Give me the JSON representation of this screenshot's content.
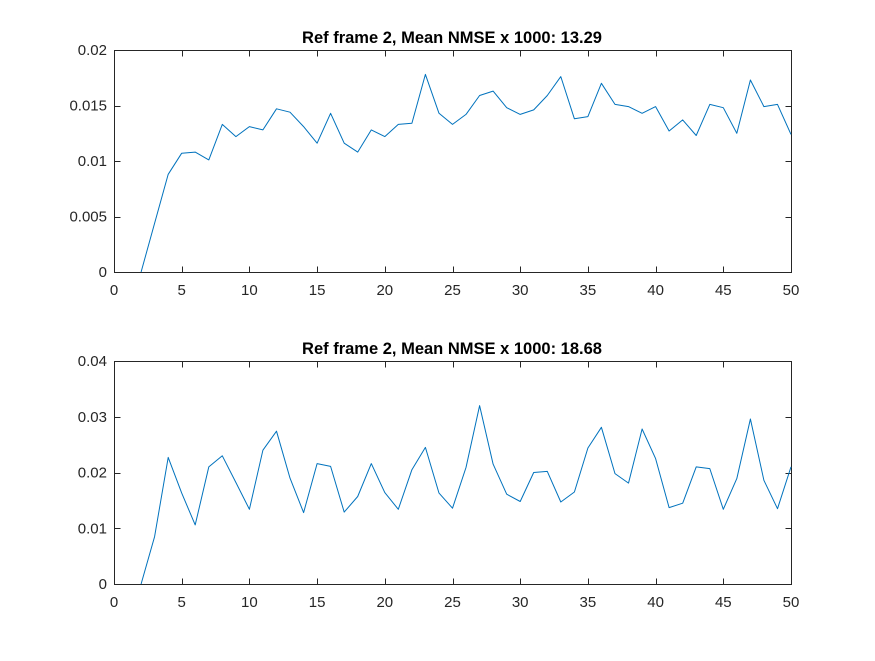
{
  "chart_data": [
    {
      "type": "line",
      "title": "Ref frame 2, Mean NMSE x 1000: 13.29",
      "xlabel": "",
      "ylabel": "",
      "xlim": [
        0,
        50
      ],
      "ylim": [
        0,
        0.02
      ],
      "xticks": [
        0,
        5,
        10,
        15,
        20,
        25,
        30,
        35,
        40,
        45,
        50
      ],
      "xtick_labels": [
        "0",
        "5",
        "10",
        "15",
        "20",
        "25",
        "30",
        "35",
        "40",
        "45",
        "50"
      ],
      "yticks": [
        0,
        0.005,
        0.01,
        0.015,
        0.02
      ],
      "ytick_labels": [
        "0",
        "0.005",
        "0.01",
        "0.015",
        "0.02"
      ],
      "grid": false,
      "line_color": "#0072BD",
      "series": [
        {
          "x": [
            2,
            3,
            4,
            5,
            6,
            7,
            8,
            9,
            10,
            11,
            12,
            13,
            14,
            15,
            16,
            17,
            18,
            19,
            20,
            21,
            22,
            23,
            24,
            25,
            26,
            27,
            28,
            29,
            30,
            31,
            32,
            33,
            34,
            35,
            36,
            37,
            38,
            39,
            40,
            41,
            42,
            43,
            44,
            45,
            46,
            47,
            48,
            49,
            50
          ],
          "values": [
            0,
            0.0044,
            0.0088,
            0.0107,
            0.0108,
            0.0101,
            0.0133,
            0.0122,
            0.0131,
            0.0128,
            0.0147,
            0.0144,
            0.0131,
            0.0116,
            0.0143,
            0.0116,
            0.0108,
            0.0128,
            0.0122,
            0.0133,
            0.0134,
            0.0178,
            0.0143,
            0.0133,
            0.0142,
            0.0159,
            0.0163,
            0.0148,
            0.0142,
            0.0146,
            0.0159,
            0.0176,
            0.0138,
            0.014,
            0.017,
            0.0151,
            0.0149,
            0.0143,
            0.0149,
            0.0127,
            0.0137,
            0.0123,
            0.0151,
            0.0148,
            0.0125,
            0.0173,
            0.0149,
            0.0151,
            0.0124
          ]
        }
      ]
    },
    {
      "type": "line",
      "title": "Ref frame 2, Mean NMSE x 1000: 18.68",
      "xlabel": "",
      "ylabel": "",
      "xlim": [
        0,
        50
      ],
      "ylim": [
        0,
        0.04
      ],
      "xticks": [
        0,
        5,
        10,
        15,
        20,
        25,
        30,
        35,
        40,
        45,
        50
      ],
      "xtick_labels": [
        "0",
        "5",
        "10",
        "15",
        "20",
        "25",
        "30",
        "35",
        "40",
        "45",
        "50"
      ],
      "yticks": [
        0,
        0.01,
        0.02,
        0.03,
        0.04
      ],
      "ytick_labels": [
        "0",
        "0.01",
        "0.02",
        "0.03",
        "0.04"
      ],
      "grid": false,
      "line_color": "#0072BD",
      "series": [
        {
          "x": [
            2,
            3,
            4,
            5,
            6,
            7,
            8,
            9,
            10,
            11,
            12,
            13,
            14,
            15,
            16,
            17,
            18,
            19,
            20,
            21,
            22,
            23,
            24,
            25,
            26,
            27,
            28,
            29,
            30,
            31,
            32,
            33,
            34,
            35,
            36,
            37,
            38,
            39,
            40,
            41,
            42,
            43,
            44,
            45,
            46,
            47,
            48,
            49,
            50
          ],
          "values": [
            0,
            0.0085,
            0.0227,
            0.0163,
            0.0106,
            0.021,
            0.023,
            0.0182,
            0.0134,
            0.024,
            0.0274,
            0.019,
            0.0128,
            0.0216,
            0.0211,
            0.0129,
            0.0157,
            0.0216,
            0.0164,
            0.0134,
            0.0205,
            0.0245,
            0.0163,
            0.0136,
            0.0209,
            0.032,
            0.0215,
            0.0161,
            0.0148,
            0.02,
            0.0202,
            0.0147,
            0.0165,
            0.0244,
            0.0281,
            0.0198,
            0.0181,
            0.0278,
            0.0225,
            0.0137,
            0.0145,
            0.021,
            0.0207,
            0.0134,
            0.0189,
            0.0296,
            0.0186,
            0.0135,
            0.021
          ]
        }
      ]
    }
  ]
}
